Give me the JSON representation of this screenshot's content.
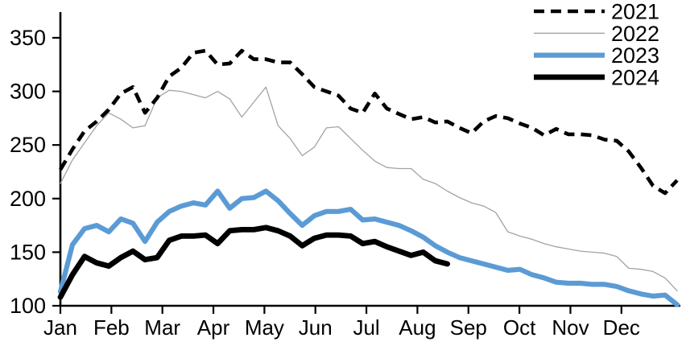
{
  "chart_data": {
    "type": "line",
    "title": "",
    "xlabel": "",
    "ylabel": "",
    "grid": false,
    "legend_position": "top-right",
    "x_unit": "week-of-year",
    "weeks": 52,
    "x_axis": {
      "month_labels": [
        "Jan",
        "Feb",
        "Mar",
        "Apr",
        "May",
        "Jun",
        "Jul",
        "Aug",
        "Sep",
        "Oct",
        "Nov",
        "Dec"
      ]
    },
    "y_axis": {
      "min": 100,
      "max": 374,
      "ticks": [
        100,
        150,
        200,
        250,
        300,
        350
      ]
    },
    "colors": {
      "axis": "#000000",
      "gray_series": "#a3a3a3",
      "blue_series": "#5b9bd5",
      "black_series": "#000000"
    },
    "series": [
      {
        "name": "2021",
        "style": "dashed",
        "color": "#000000",
        "width": 4.6,
        "values": [
          227,
          246,
          263,
          272,
          283,
          298,
          304,
          280,
          294,
          314,
          322,
          336,
          338,
          325,
          326,
          338,
          330,
          330,
          327,
          327,
          316,
          304,
          300,
          296,
          284,
          280,
          298,
          284,
          279,
          274,
          276,
          271,
          272,
          266,
          261,
          272,
          277,
          275,
          270,
          266,
          259,
          265,
          260,
          260,
          259,
          255,
          254,
          244,
          229,
          212,
          205,
          217
        ]
      },
      {
        "name": "2022",
        "style": "solid",
        "color": "#a3a3a3",
        "width": 1.3,
        "values": [
          214,
          236,
          252,
          268,
          280,
          274,
          266,
          268,
          294,
          301,
          300,
          297,
          294,
          300,
          293,
          276,
          290,
          304,
          268,
          256,
          240,
          248,
          266,
          267,
          256,
          245,
          235,
          229,
          228,
          228,
          218,
          214,
          207,
          201,
          196,
          193,
          187,
          169,
          165,
          162,
          158,
          155,
          153,
          151,
          150,
          149,
          146,
          135,
          134,
          132,
          126,
          114
        ]
      },
      {
        "name": "2023",
        "style": "solid",
        "color": "#5b9bd5",
        "width": 6.2,
        "values": [
          113,
          157,
          172,
          175,
          169,
          181,
          177,
          160,
          178,
          188,
          193,
          196,
          194,
          207,
          191,
          200,
          201,
          207,
          198,
          186,
          175,
          184,
          188,
          188,
          190,
          180,
          181,
          178,
          175,
          170,
          164,
          156,
          150,
          145,
          142,
          139,
          136,
          133,
          134,
          129,
          126,
          122,
          121,
          121,
          120,
          120,
          118,
          114,
          111,
          109,
          110,
          101
        ]
      },
      {
        "name": "2024",
        "style": "solid",
        "color": "#000000",
        "width": 6.8,
        "values": [
          108,
          129,
          146,
          140,
          137,
          145,
          151,
          143,
          145,
          161,
          165,
          165,
          166,
          158,
          170,
          171,
          171,
          173,
          170,
          165,
          156,
          163,
          166,
          166,
          165,
          158,
          160,
          155,
          151,
          147,
          150,
          142,
          139
        ]
      }
    ]
  }
}
